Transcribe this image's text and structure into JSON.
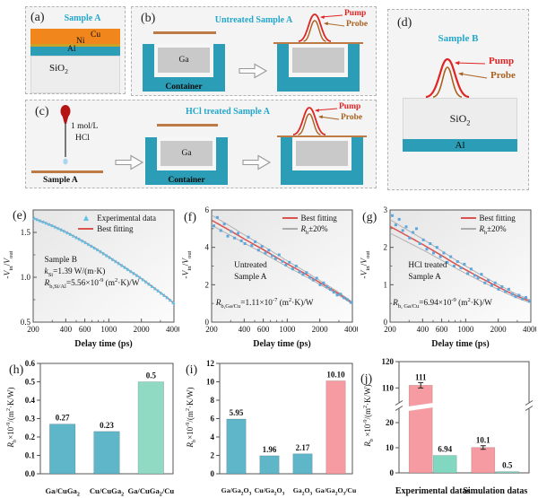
{
  "figure": {
    "panels": {
      "a": {
        "tag": "(a)",
        "title": "Sample A",
        "cu": "Cu",
        "ni": "Ni",
        "al": "Al",
        "sio2_html": "SiO<sub>2</sub>"
      },
      "b": {
        "tag": "(b)",
        "title": "Untreated Sample A",
        "ga": "Ga",
        "container": "Container",
        "pump": "Pump",
        "probe": "Probe"
      },
      "c": {
        "tag": "(c)",
        "title": "HCl treated Sample A",
        "hcl_line1": "1 mol/L",
        "hcl_line2": "HCl",
        "sample": "Sample A",
        "ga": "Ga",
        "container": "Container",
        "pump": "Pump",
        "probe": "Probe"
      },
      "d": {
        "tag": "(d)",
        "title": "Sample B",
        "sio2_html": "SiO<sub>2</sub>",
        "al": "Al",
        "pump": "Pump",
        "probe": "Probe"
      }
    },
    "colors": {
      "accent_cyan": "#23a7cc",
      "teal": "#2b9db6",
      "copper": "#f0861c",
      "nickel": "#c9a22a",
      "pump_red": "#e02424",
      "probe_brown": "#a9611f",
      "fit_red": "#d9534f",
      "band_gray": "#acacac",
      "scatter_blue": "#5ba7de",
      "marker_cyan": "#62c2e5",
      "bar_teal": "#5fb6c9",
      "bar_green": "#8cd8c3",
      "bar_pink": "#f59ba1"
    }
  },
  "chart_data": [
    {
      "id": "e",
      "panel_label": "(e)",
      "type": "line",
      "xscale": "log",
      "xlabel": "Delay time (ps)",
      "ylabel_html": "-<i>V</i><sub>in</sub>/<i>V</i><sub>out</sub>",
      "xlim": [
        200,
        4000
      ],
      "xticks": [
        200,
        400,
        600,
        1000,
        2000,
        4000
      ],
      "xminor": [
        300,
        500,
        700,
        800,
        900,
        3000
      ],
      "ylim": [
        0.5,
        1.75
      ],
      "ytick_values": [
        0.5,
        1.0,
        1.5
      ],
      "ytick_labels": [
        "0.5",
        "1.0",
        "1.5"
      ],
      "yminor": [
        0.75,
        1.25
      ],
      "legend": [
        {
          "html": "Experimental data",
          "style": "triangle",
          "color": "#62c2e5"
        },
        {
          "html": "Best fitting",
          "style": "line",
          "color": "#d9534f"
        }
      ],
      "fit_color": "#d9534f",
      "marker_color": "#62c2e5",
      "experimental": "on-curve",
      "fit": [
        [
          200,
          1.66
        ],
        [
          300,
          1.575
        ],
        [
          400,
          1.505
        ],
        [
          600,
          1.39
        ],
        [
          800,
          1.3
        ],
        [
          1000,
          1.225
        ],
        [
          1400,
          1.11
        ],
        [
          2000,
          0.985
        ],
        [
          2800,
          0.855
        ],
        [
          3400,
          0.78
        ],
        [
          4000,
          0.71
        ]
      ],
      "annotation_block": [
        "Sample B",
        "<i>k</i><sub>Si</sub>=1.39 W/(m·K)",
        "<i>R</i><sub>b,Si/Al</sub>=5.56×10<sup>-9</sup> (m<sup>2</sup>·K)/W"
      ]
    },
    {
      "id": "f",
      "panel_label": "(f)",
      "type": "line",
      "xscale": "log",
      "xlabel": "Delay time (ps)",
      "ylabel_html": "-<i>V</i><sub>in</sub>/<i>V</i><sub>out</sub>",
      "xlim": [
        200,
        4000
      ],
      "xticks": [
        200,
        400,
        600,
        1000,
        2000,
        4000
      ],
      "xminor": [
        300,
        500,
        700,
        800,
        900,
        3000
      ],
      "ylim": [
        0,
        6
      ],
      "ytick_values": [
        0,
        2,
        4,
        6
      ],
      "ytick_labels": [
        "0",
        "2",
        "4",
        "6"
      ],
      "yminor": [
        1,
        3,
        5
      ],
      "legend": [
        {
          "html": "Best fitting",
          "style": "line",
          "color": "#d9534f"
        },
        {
          "html": "<i>R</i><sub>b</sub>±20%",
          "style": "line",
          "color": "#acacac"
        }
      ],
      "fit_color": "#d9534f",
      "scatter_color": "#5ba7de",
      "band_factors": [
        1.05,
        0.95
      ],
      "fit": [
        [
          200,
          5.45
        ],
        [
          300,
          4.88
        ],
        [
          400,
          4.45
        ],
        [
          600,
          3.88
        ],
        [
          800,
          3.45
        ],
        [
          1000,
          3.12
        ],
        [
          1400,
          2.65
        ],
        [
          2000,
          2.12
        ],
        [
          2800,
          1.62
        ],
        [
          3400,
          1.3
        ],
        [
          4000,
          1.02
        ]
      ],
      "scatter": [
        [
          210,
          5.15
        ],
        [
          226,
          5.6
        ],
        [
          243,
          4.9
        ],
        [
          262,
          5.25
        ],
        [
          282,
          4.6
        ],
        [
          303,
          4.85
        ],
        [
          326,
          4.5
        ],
        [
          351,
          4.75
        ],
        [
          377,
          4.35
        ],
        [
          406,
          4.2
        ],
        [
          437,
          4.55
        ],
        [
          470,
          4.1
        ],
        [
          505,
          4.3
        ],
        [
          543,
          3.85
        ],
        [
          584,
          4.05
        ],
        [
          628,
          3.7
        ],
        [
          676,
          3.85
        ],
        [
          727,
          3.55
        ],
        [
          782,
          3.4
        ],
        [
          841,
          3.6
        ],
        [
          904,
          3.25
        ],
        [
          972,
          3.05
        ],
        [
          1046,
          3.2
        ],
        [
          1125,
          2.85
        ],
        [
          1210,
          3.0
        ],
        [
          1301,
          2.7
        ],
        [
          1399,
          2.55
        ],
        [
          1505,
          2.65
        ],
        [
          1618,
          2.4
        ],
        [
          1740,
          2.25
        ],
        [
          1872,
          2.35
        ],
        [
          2013,
          2.0
        ],
        [
          2165,
          2.1
        ],
        [
          2328,
          1.9
        ],
        [
          2504,
          1.75
        ],
        [
          2693,
          1.6
        ],
        [
          2896,
          1.45
        ],
        [
          3114,
          1.5
        ],
        [
          3349,
          1.3
        ],
        [
          3602,
          1.2
        ],
        [
          3874,
          1.05
        ]
      ],
      "annotation_block": [
        "Untreated",
        "Sample A"
      ],
      "annotation_rb": "<i>R</i><sub>b,Ga/Cu</sub>=1.11×10<sup>-7</sup> (m<sup>2</sup>·K)/W"
    },
    {
      "id": "g",
      "panel_label": "(g)",
      "type": "line",
      "xscale": "log",
      "xlabel": "Delay time (ps)",
      "ylabel_html": "-<i>V</i><sub>in</sub>/<i>V</i><sub>out</sub>",
      "xlim": [
        200,
        4000
      ],
      "xticks": [
        200,
        400,
        600,
        1000,
        2000,
        4000
      ],
      "xminor": [
        300,
        500,
        700,
        800,
        900,
        3000
      ],
      "ylim": [
        0,
        3
      ],
      "ytick_values": [
        0,
        1,
        2,
        3
      ],
      "ytick_labels": [
        "0",
        "1",
        "2",
        "3"
      ],
      "yminor": [
        0.5,
        1.5,
        2.5
      ],
      "legend": [
        {
          "html": "Best fitting",
          "style": "line",
          "color": "#d9534f"
        },
        {
          "html": "<i>R</i><sub>b</sub>±20%",
          "style": "line",
          "color": "#acacac"
        }
      ],
      "fit_color": "#d9534f",
      "scatter_color": "#5ba7de",
      "band_factors": [
        1.07,
        0.93
      ],
      "fit": [
        [
          200,
          2.56
        ],
        [
          300,
          2.28
        ],
        [
          400,
          2.08
        ],
        [
          600,
          1.78
        ],
        [
          800,
          1.56
        ],
        [
          1000,
          1.4
        ],
        [
          1400,
          1.17
        ],
        [
          2000,
          0.94
        ],
        [
          2800,
          0.73
        ],
        [
          3400,
          0.63
        ],
        [
          4000,
          0.55
        ]
      ],
      "scatter": [
        [
          210,
          2.85
        ],
        [
          226,
          2.6
        ],
        [
          243,
          2.75
        ],
        [
          262,
          2.45
        ],
        [
          282,
          2.55
        ],
        [
          303,
          2.25
        ],
        [
          326,
          2.4
        ],
        [
          351,
          2.5
        ],
        [
          377,
          2.1
        ],
        [
          406,
          2.2
        ],
        [
          437,
          1.95
        ],
        [
          470,
          2.1
        ],
        [
          505,
          1.85
        ],
        [
          543,
          2.0
        ],
        [
          584,
          1.75
        ],
        [
          628,
          1.85
        ],
        [
          676,
          1.6
        ],
        [
          727,
          1.75
        ],
        [
          782,
          1.5
        ],
        [
          841,
          1.62
        ],
        [
          904,
          1.45
        ],
        [
          972,
          1.55
        ],
        [
          1046,
          1.3
        ],
        [
          1125,
          1.42
        ],
        [
          1210,
          1.25
        ],
        [
          1301,
          1.18
        ],
        [
          1399,
          1.28
        ],
        [
          1505,
          1.05
        ],
        [
          1618,
          1.12
        ],
        [
          1740,
          0.98
        ],
        [
          1872,
          1.05
        ],
        [
          2013,
          0.88
        ],
        [
          2165,
          0.95
        ],
        [
          2328,
          0.82
        ],
        [
          2504,
          0.88
        ],
        [
          2693,
          0.75
        ],
        [
          2896,
          0.68
        ],
        [
          3114,
          0.72
        ],
        [
          3349,
          0.62
        ],
        [
          3602,
          0.66
        ],
        [
          3874,
          0.56
        ]
      ],
      "annotation_block": [
        "HCl treated",
        "Sample A"
      ],
      "annotation_rb": "<i>R</i><sub>b, Ga/Cu</sub>=6.94×10<sup>-9</sup> (m<sup>2</sup>·K)/W"
    },
    {
      "id": "h",
      "panel_label": "(h)",
      "type": "bar",
      "ylabel_html": "<i>R</i><sub>b</sub>×10<sup>-9</sup>/(m<sup>2</sup>·K/W)",
      "categories_html": [
        "Ga/CuGa<sub>2</sub>",
        "Cu/CuGa<sub>2</sub>",
        "Ga/CuGa<sub>2</sub>/Cu"
      ],
      "values": [
        0.27,
        0.23,
        0.5
      ],
      "value_labels": [
        "0.27",
        "0.23",
        "0.5"
      ],
      "bar_colors": [
        "#5fb6c9",
        "#5fb6c9",
        "#90dac4"
      ],
      "ylim": [
        0,
        0.6
      ],
      "ytick_values": [
        0,
        0.1,
        0.2,
        0.3,
        0.4,
        0.5,
        0.6
      ],
      "ytick_labels": [
        "0.0",
        "0.1",
        "0.2",
        "0.3",
        "0.4",
        "0.5",
        "0.6"
      ],
      "cat_fs": 8.6
    },
    {
      "id": "i",
      "panel_label": "(i)",
      "type": "bar",
      "ylabel_html": "<i>R</i><sub>b</sub>×10<sup>-9</sup>/(m<sup>2</sup>·K/W)",
      "categories_html": [
        "Ga/Ga<sub>2</sub>O<sub>3</sub>",
        "Cu/Ga<sub>2</sub>O<sub>3</sub>",
        "Ga<sub>2</sub>O<sub>3</sub>",
        "Ga/Ga<sub>2</sub>O<sub>3</sub>/Cu"
      ],
      "values": [
        5.95,
        1.96,
        2.17,
        10.1
      ],
      "value_labels": [
        "5.95",
        "1.96",
        "2.17",
        "10.10"
      ],
      "bar_colors": [
        "#5fb6c9",
        "#5fb6c9",
        "#5fb6c9",
        "#f59ba1"
      ],
      "ylim": [
        0,
        12
      ],
      "ytick_values": [
        0,
        2,
        4,
        6,
        8,
        10,
        12
      ],
      "ytick_labels": [
        "0",
        "2",
        "4",
        "6",
        "8",
        "10",
        "12"
      ],
      "cat_fs": 7.8
    },
    {
      "id": "j",
      "panel_label": "(j)",
      "type": "bar-broken",
      "ylabel_html": "<i>R</i><sub>b</sub> ×10<sup>-9</sup>/(m<sup>2</sup>·K/W)",
      "groups": [
        "Experimental datas",
        "Simulation datas"
      ],
      "bars": [
        {
          "group": 0,
          "value": 111,
          "label": "111",
          "color": "#f59ba1",
          "error": 3
        },
        {
          "group": 0,
          "value": 6.94,
          "label": "6.94",
          "color": "#82d7c0"
        },
        {
          "group": 1,
          "value": 10.1,
          "label": "10.1",
          "color": "#f59ba1",
          "error": 2
        },
        {
          "group": 1,
          "value": 0.5,
          "label": "0.5",
          "color": "#82d7c0"
        }
      ],
      "ylim": [
        0,
        120
      ],
      "axis_break": {
        "lower_max": 25,
        "upper_min": 105
      },
      "yticks_lower": {
        "values": [
          0,
          10,
          20
        ],
        "labels": [
          "0",
          "10",
          "20"
        ]
      },
      "yticks_upper": {
        "values": [
          110,
          120
        ],
        "labels": [
          "110",
          "120"
        ]
      }
    }
  ]
}
